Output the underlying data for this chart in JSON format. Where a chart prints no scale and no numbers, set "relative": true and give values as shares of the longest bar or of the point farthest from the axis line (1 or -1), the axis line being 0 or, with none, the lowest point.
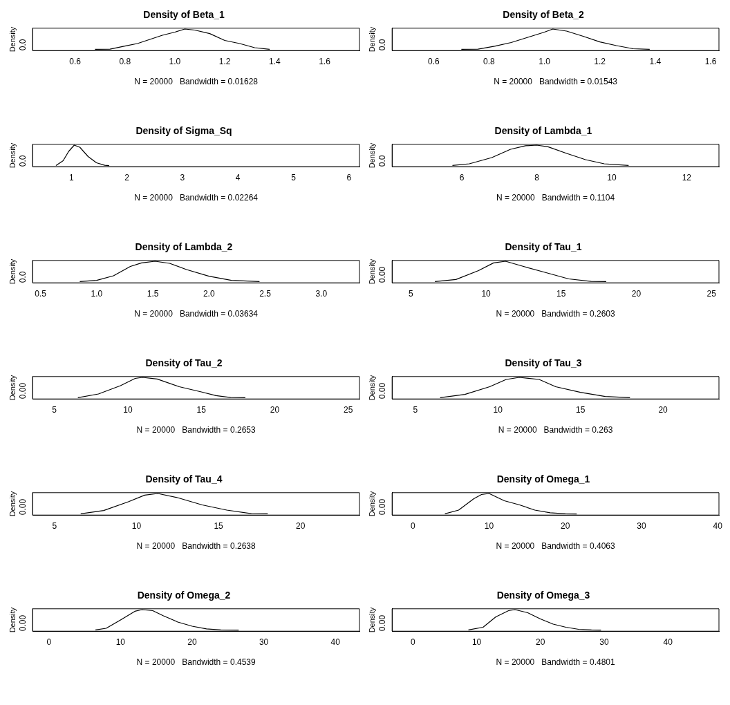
{
  "chart_data": [
    {
      "type": "line",
      "title": "Density of Beta_1",
      "xlabel": "N = 20000   Bandwidth = 0.01628",
      "ylabel": "Density",
      "relative": true,
      "color": "#000000",
      "xlim": [
        0.43,
        1.74
      ],
      "xticks": [
        0.6,
        0.8,
        {
          "value": 1,
          "label": "1.0"
        },
        1.2,
        1.4,
        1.6
      ],
      "annotations": [
        "0.0"
      ],
      "x": [
        0.68,
        0.74,
        0.8,
        0.85,
        0.9,
        0.95,
        1.0,
        1.04,
        1.08,
        1.14,
        1.2,
        1.26,
        1.32,
        1.38
      ],
      "values": [
        0.02,
        0.03,
        0.18,
        0.3,
        0.5,
        0.7,
        0.85,
        1.0,
        0.95,
        0.78,
        0.45,
        0.3,
        0.1,
        0.02
      ]
    },
    {
      "type": "line",
      "title": "Density of Beta_2",
      "xlabel": "N = 20000   Bandwidth = 0.01543",
      "ylabel": "Density",
      "relative": true,
      "color": "#000000",
      "xlim": [
        0.45,
        1.63
      ],
      "xticks": [
        0.6,
        0.8,
        {
          "value": 1,
          "label": "1.0"
        },
        1.2,
        1.4,
        1.6
      ],
      "annotations": [
        "0.0"
      ],
      "x": [
        0.7,
        0.76,
        0.82,
        0.88,
        0.94,
        1.0,
        1.03,
        1.08,
        1.14,
        1.2,
        1.26,
        1.32,
        1.38
      ],
      "values": [
        0.02,
        0.03,
        0.17,
        0.35,
        0.6,
        0.85,
        1.0,
        0.9,
        0.65,
        0.38,
        0.2,
        0.05,
        0.02
      ]
    },
    {
      "type": "line",
      "title": "Density of Sigma_Sq",
      "xlabel": "N = 20000   Bandwidth = 0.02264",
      "ylabel": "Density",
      "relative": true,
      "color": "#000000",
      "xlim": [
        0.3,
        6.19
      ],
      "xticks": [
        1,
        2,
        3,
        4,
        5,
        6
      ],
      "annotations": [
        "0.0"
      ],
      "x": [
        0.72,
        0.85,
        0.95,
        1.05,
        1.15,
        1.3,
        1.45,
        1.6,
        1.68
      ],
      "values": [
        0.02,
        0.25,
        0.7,
        1.0,
        0.9,
        0.45,
        0.15,
        0.03,
        0.01
      ]
    },
    {
      "type": "line",
      "title": "Density of Lambda_1",
      "xlabel": "N = 20000   Bandwidth = 0.1104",
      "ylabel": "Density",
      "relative": true,
      "color": "#000000",
      "xlim": [
        4.14,
        12.86
      ],
      "xticks": [
        6,
        8,
        10,
        12
      ],
      "annotations": [
        "0.0"
      ],
      "x": [
        5.75,
        6.2,
        6.8,
        7.3,
        7.7,
        8.0,
        8.3,
        8.8,
        9.3,
        9.8,
        10.45
      ],
      "values": [
        0.02,
        0.1,
        0.4,
        0.8,
        0.97,
        1.0,
        0.92,
        0.6,
        0.3,
        0.1,
        0.02
      ]
    },
    {
      "type": "line",
      "title": "Density of Lambda_2",
      "xlabel": "N = 20000   Bandwidth = 0.03634",
      "ylabel": "Density",
      "relative": true,
      "color": "#000000",
      "xlim": [
        0.43,
        3.34
      ],
      "xticks": [
        0.5,
        {
          "value": 1,
          "label": "1.0"
        },
        1.5,
        {
          "value": 2,
          "label": "2.0"
        },
        2.5,
        {
          "value": 3,
          "label": "3.0"
        }
      ],
      "annotations": [
        "0.0"
      ],
      "x": [
        0.85,
        1.0,
        1.15,
        1.3,
        1.4,
        1.52,
        1.65,
        1.8,
        2.0,
        2.2,
        2.45
      ],
      "values": [
        0.02,
        0.08,
        0.3,
        0.75,
        0.92,
        1.0,
        0.9,
        0.6,
        0.28,
        0.08,
        0.02
      ]
    },
    {
      "type": "line",
      "title": "Density of Tau_1",
      "xlabel": "N = 20000   Bandwidth = 0.2603",
      "ylabel": "Density",
      "relative": true,
      "color": "#000000",
      "xlim": [
        3.75,
        25.5
      ],
      "xticks": [
        5,
        10,
        15,
        20,
        25
      ],
      "annotations": [
        "0.00"
      ],
      "x": [
        6.6,
        8,
        9.5,
        10.5,
        11.3,
        12.5,
        14,
        15.5,
        17,
        18
      ],
      "values": [
        0.02,
        0.12,
        0.55,
        0.92,
        1.0,
        0.75,
        0.45,
        0.15,
        0.03,
        0.02
      ]
    },
    {
      "type": "line",
      "title": "Density of Tau_2",
      "xlabel": "N = 20000   Bandwidth = 0.2653",
      "ylabel": "Density",
      "relative": true,
      "color": "#000000",
      "xlim": [
        3.52,
        25.77
      ],
      "xticks": [
        5,
        10,
        15,
        20,
        25
      ],
      "annotations": [
        "0.00"
      ],
      "x": [
        6.6,
        8,
        9.5,
        10.5,
        11,
        12,
        13.5,
        15,
        16,
        17,
        18
      ],
      "values": [
        0.02,
        0.2,
        0.6,
        0.95,
        1.0,
        0.92,
        0.55,
        0.3,
        0.12,
        0.03,
        0.02
      ]
    },
    {
      "type": "line",
      "title": "Density of Tau_3",
      "xlabel": "N = 20000   Bandwidth = 0.263",
      "ylabel": "Density",
      "relative": true,
      "color": "#000000",
      "xlim": [
        3.59,
        23.39
      ],
      "xticks": [
        5,
        10,
        15,
        20
      ],
      "annotations": [
        "0.00"
      ],
      "x": [
        6.5,
        8,
        9.5,
        10.5,
        11.3,
        12.5,
        13.5,
        15,
        16.5,
        18
      ],
      "values": [
        0.02,
        0.18,
        0.55,
        0.9,
        1.0,
        0.9,
        0.55,
        0.28,
        0.08,
        0.02
      ]
    },
    {
      "type": "line",
      "title": "Density of Tau_4",
      "xlabel": "N = 20000   Bandwidth = 0.2638",
      "ylabel": "Density",
      "relative": true,
      "color": "#000000",
      "xlim": [
        3.67,
        23.59
      ],
      "xticks": [
        5,
        10,
        15,
        20
      ],
      "annotations": [
        "0.00"
      ],
      "x": [
        6.6,
        8,
        9.5,
        10.5,
        11.3,
        12.5,
        14,
        15.5,
        17,
        18
      ],
      "values": [
        0.02,
        0.18,
        0.6,
        0.92,
        1.0,
        0.8,
        0.45,
        0.2,
        0.03,
        0.02
      ]
    },
    {
      "type": "line",
      "title": "Density of Omega_1",
      "xlabel": "N = 20000   Bandwidth = 0.4063",
      "ylabel": "Density",
      "relative": true,
      "color": "#000000",
      "xlim": [
        -2.73,
        40.16
      ],
      "xticks": [
        0,
        10,
        20,
        30,
        40
      ],
      "annotations": [
        "0.00"
      ],
      "x": [
        4.2,
        6,
        8,
        9,
        10,
        12,
        14,
        16,
        18,
        20,
        21.5
      ],
      "values": [
        0.02,
        0.2,
        0.75,
        0.95,
        1.0,
        0.65,
        0.45,
        0.2,
        0.07,
        0.02,
        0.01
      ]
    },
    {
      "type": "line",
      "title": "Density of Omega_2",
      "xlabel": "N = 20000   Bandwidth = 0.4539",
      "ylabel": "Density",
      "relative": true,
      "color": "#000000",
      "xlim": [
        -2.27,
        43.36
      ],
      "xticks": [
        0,
        10,
        20,
        30,
        40
      ],
      "annotations": [
        "0.00"
      ],
      "x": [
        6.5,
        8,
        10,
        12,
        13,
        14.5,
        16,
        18,
        20,
        22,
        24,
        26.5
      ],
      "values": [
        0.02,
        0.1,
        0.5,
        0.92,
        1.0,
        0.95,
        0.7,
        0.4,
        0.2,
        0.07,
        0.02,
        0.01
      ]
    },
    {
      "type": "line",
      "title": "Density of Omega_3",
      "xlabel": "N = 20000   Bandwidth = 0.4801",
      "ylabel": "Density",
      "relative": true,
      "color": "#000000",
      "xlim": [
        -3.27,
        48.0
      ],
      "xticks": [
        0,
        10,
        20,
        30,
        40
      ],
      "annotations": [
        "0.00"
      ],
      "x": [
        8.7,
        11,
        13,
        15,
        16,
        18,
        20,
        22,
        24,
        26,
        28,
        29.5
      ],
      "values": [
        0.02,
        0.15,
        0.65,
        0.95,
        1.0,
        0.85,
        0.55,
        0.3,
        0.15,
        0.05,
        0.02,
        0.01
      ]
    }
  ]
}
